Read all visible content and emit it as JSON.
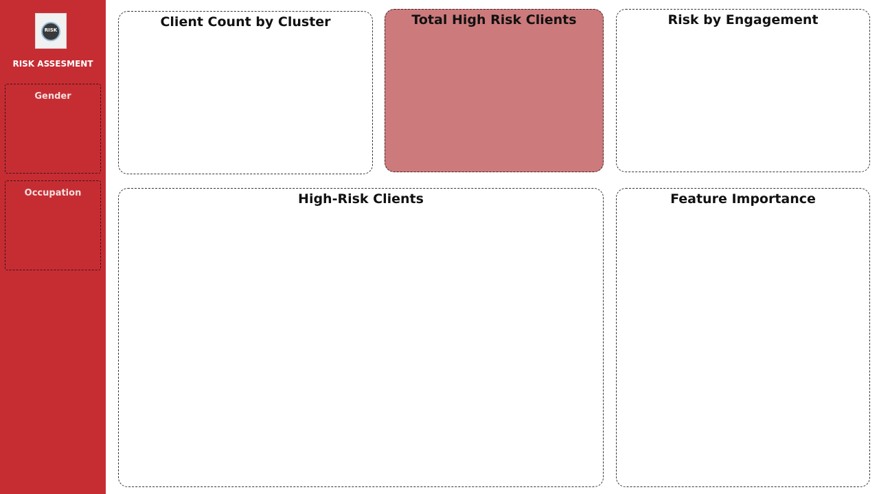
{
  "sidebar": {
    "logo_text": "RISK",
    "title": "RISK ASSESMENT",
    "slicers": [
      {
        "label": "Gender"
      },
      {
        "label": "Occupation"
      }
    ]
  },
  "cards": {
    "client_count": {
      "title": "Client Count by Cluster"
    },
    "total_high_risk": {
      "title": "Total High Risk Clients"
    },
    "risk_engagement": {
      "title": "Risk by Engagement"
    },
    "high_risk_clients": {
      "title": "High-Risk Clients"
    },
    "feature_importance": {
      "title": "Feature Importance"
    }
  },
  "colors": {
    "sidebar_bg": "#c62d33",
    "highlight_card_bg": "#cd7a7c"
  }
}
